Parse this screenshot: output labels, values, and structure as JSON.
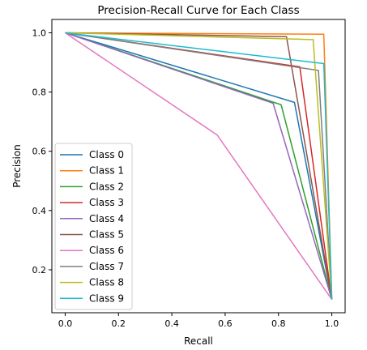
{
  "chart_data": {
    "type": "line",
    "title": "Precision-Recall Curve for Each Class",
    "xlabel": "Recall",
    "ylabel": "Precision",
    "xlim": [
      -0.05,
      1.05
    ],
    "ylim": [
      0.055,
      1.045
    ],
    "xticks": [
      0.0,
      0.2,
      0.4,
      0.6,
      0.8,
      1.0
    ],
    "xtick_labels": [
      "0.0",
      "0.2",
      "0.4",
      "0.6",
      "0.8",
      "1.0"
    ],
    "yticks": [
      0.2,
      0.4,
      0.6,
      0.8,
      1.0
    ],
    "ytick_labels": [
      "0.2",
      "0.4",
      "0.6",
      "0.8",
      "1.0"
    ],
    "grid": false,
    "legend_position": "lower-left",
    "series": [
      {
        "name": "Class 0",
        "color": "#1f77b4",
        "x": [
          0.0,
          0.86,
          1.0
        ],
        "y": [
          1.0,
          0.765,
          0.1
        ]
      },
      {
        "name": "Class 1",
        "color": "#ff7f0e",
        "x": [
          0.0,
          0.97,
          1.0
        ],
        "y": [
          1.0,
          0.995,
          0.1
        ]
      },
      {
        "name": "Class 2",
        "color": "#2ca02c",
        "x": [
          0.0,
          0.81,
          1.0
        ],
        "y": [
          1.0,
          0.757,
          0.1
        ]
      },
      {
        "name": "Class 3",
        "color": "#d62728",
        "x": [
          0.0,
          0.88,
          1.0
        ],
        "y": [
          1.0,
          0.885,
          0.1
        ]
      },
      {
        "name": "Class 4",
        "color": "#9467bd",
        "x": [
          0.0,
          0.78,
          1.0
        ],
        "y": [
          1.0,
          0.762,
          0.1
        ]
      },
      {
        "name": "Class 5",
        "color": "#8c564b",
        "x": [
          0.0,
          0.83,
          1.0
        ],
        "y": [
          1.0,
          0.987,
          0.1
        ]
      },
      {
        "name": "Class 6",
        "color": "#e377c2",
        "x": [
          0.0,
          0.57,
          1.0
        ],
        "y": [
          1.0,
          0.655,
          0.1
        ]
      },
      {
        "name": "Class 7",
        "color": "#7f7f7f",
        "x": [
          0.0,
          0.95,
          1.0
        ],
        "y": [
          1.0,
          0.873,
          0.1
        ]
      },
      {
        "name": "Class 8",
        "color": "#bcbd22",
        "x": [
          0.0,
          0.93,
          1.0
        ],
        "y": [
          1.0,
          0.977,
          0.1
        ]
      },
      {
        "name": "Class 9",
        "color": "#17becf",
        "x": [
          0.0,
          0.97,
          1.0
        ],
        "y": [
          1.0,
          0.896,
          0.1
        ]
      }
    ]
  }
}
